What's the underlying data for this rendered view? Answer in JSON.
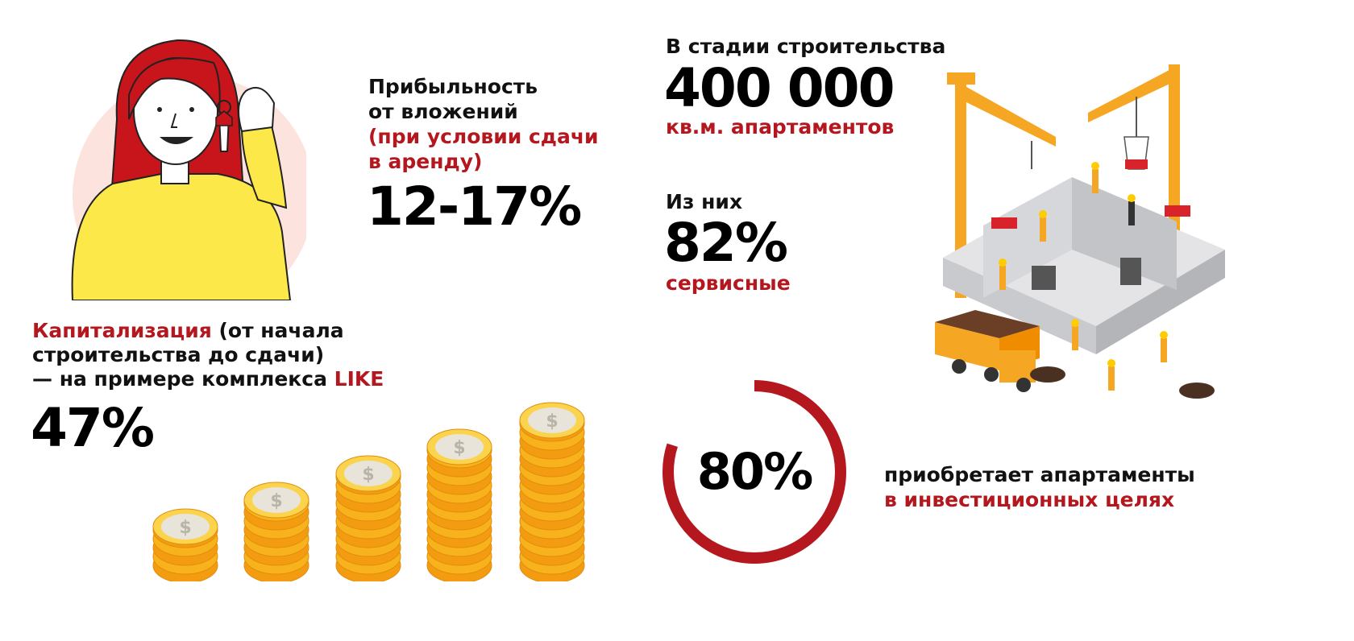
{
  "profitability": {
    "label_line1": "Прибыльность",
    "label_line2": "от вложений",
    "note_line1": "(при условии сдачи",
    "note_line2": "в аренду)",
    "value": "12-17%"
  },
  "construction": {
    "label": "В стадии строительства",
    "value": "400 000",
    "unit": "кв.м. апартаментов"
  },
  "service": {
    "label": "Из них",
    "value": "82%",
    "unit": "сервисные"
  },
  "capitalization": {
    "label_red": "Капитализация",
    "label_rest1": " (от начала",
    "label_line2": "строительства до сдачи)",
    "label_line3_prefix": "— на примере комплекса ",
    "label_line3_highlight": "LIKE",
    "value": "47%"
  },
  "investment": {
    "value": "80%",
    "progress": 0.8,
    "text_line1": "приобретает апартаменты",
    "text_line2": "в инвестиционных целях"
  },
  "colors": {
    "accent_red": "#b5171e",
    "coin_gold": "#f7b21c",
    "crane_orange": "#f5a623",
    "shirt_yellow": "#fde84a"
  },
  "icons": [
    "woman-with-keys-illustration",
    "construction-site-illustration",
    "coin-stacks-illustration",
    "dollar-coin-icon"
  ]
}
